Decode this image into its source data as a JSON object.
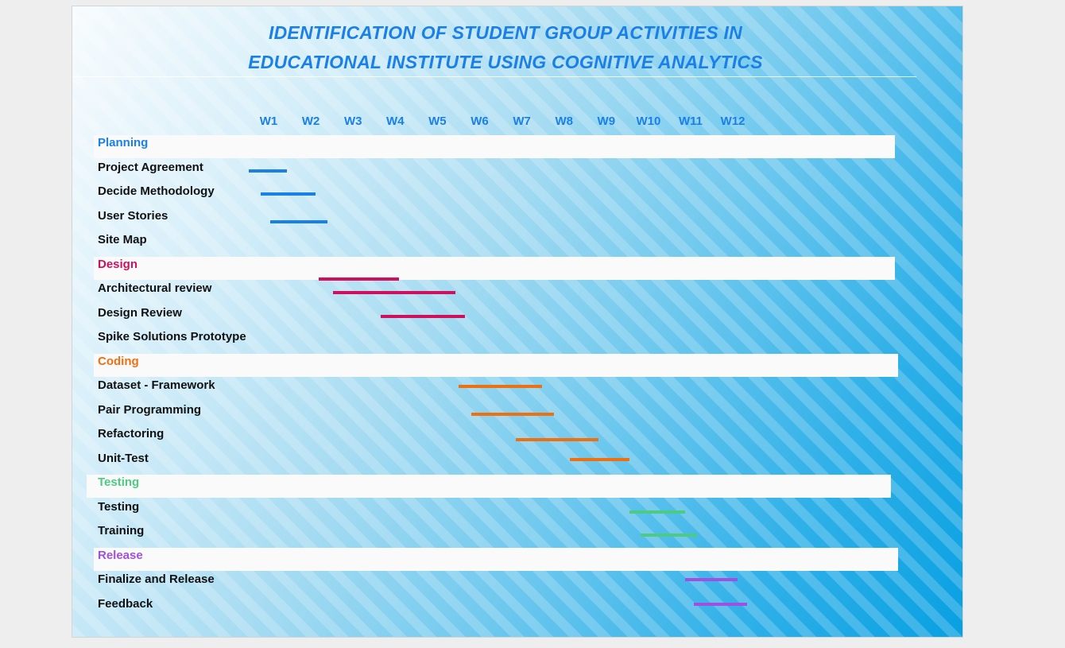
{
  "title": {
    "line1": "IDENTIFICATION OF STUDENT GROUP ACTIVITIES IN",
    "line2": "EDUCATIONAL INSTITUTE USING COGNITIVE ANALYTICS"
  },
  "colors": {
    "title": "#1a80e8",
    "planning": "#1a80e8",
    "design": "#d0105c",
    "coding": "#ef7011",
    "testing": "#4ecb82",
    "release": "#a04fe0"
  },
  "weeks": [
    "W1",
    "W2",
    "W3",
    "W4",
    "W5",
    "W6",
    "W7",
    "W8",
    "W9",
    "W10",
    "W11",
    "W12"
  ],
  "categories": [
    {
      "name": "Planning",
      "color": "#1a80e8",
      "tasks": [
        {
          "label": "Project Agreement",
          "bars": [
            {
              "start": 0.52,
              "end": 1.43
            }
          ]
        },
        {
          "label": "Decide Methodology",
          "bars": [
            {
              "start": 0.81,
              "end": 2.11
            }
          ]
        },
        {
          "label": "User Stories",
          "bars": [
            {
              "start": 1.03,
              "end": 2.4
            }
          ]
        },
        {
          "label": "Site Map",
          "bars": []
        }
      ]
    },
    {
      "name": "Design",
      "color": "#d0105c",
      "tasks": [
        {
          "label": "Architectural review",
          "bars": [
            {
              "start": 2.18,
              "end": 4.08
            },
            {
              "start": 2.52,
              "end": 5.42
            }
          ]
        },
        {
          "label": "Design Review",
          "bars": [
            {
              "start": 3.65,
              "end": 5.65
            }
          ]
        },
        {
          "label": "Spike Solutions Prototype",
          "bars": []
        }
      ]
    },
    {
      "name": "Coding",
      "color": "#ef7011",
      "tasks": [
        {
          "label": "Dataset - Framework",
          "bars": [
            {
              "start": 5.51,
              "end": 7.47
            }
          ]
        },
        {
          "label": "Pair Programming",
          "bars": [
            {
              "start": 5.8,
              "end": 7.76
            }
          ]
        },
        {
          "label": "Refactoring",
          "bars": [
            {
              "start": 6.85,
              "end": 8.82
            }
          ]
        },
        {
          "label": "Unit-Test",
          "bars": [
            {
              "start": 8.14,
              "end": 9.55
            }
          ]
        }
      ]
    },
    {
      "name": "Testing",
      "color": "#4ecb82",
      "tasks": [
        {
          "label": "Testing",
          "bars": [
            {
              "start": 9.55,
              "end": 10.87
            }
          ]
        },
        {
          "label": "Training",
          "bars": [
            {
              "start": 9.81,
              "end": 11.15
            }
          ]
        }
      ]
    },
    {
      "name": "Release",
      "color": "#a04fe0",
      "tasks": [
        {
          "label": "Finalize and Release",
          "bars": [
            {
              "start": 10.87,
              "end": 12.12
            }
          ]
        },
        {
          "label": "Feedback",
          "bars": [
            {
              "start": 11.08,
              "end": 12.33
            }
          ]
        }
      ]
    }
  ]
}
